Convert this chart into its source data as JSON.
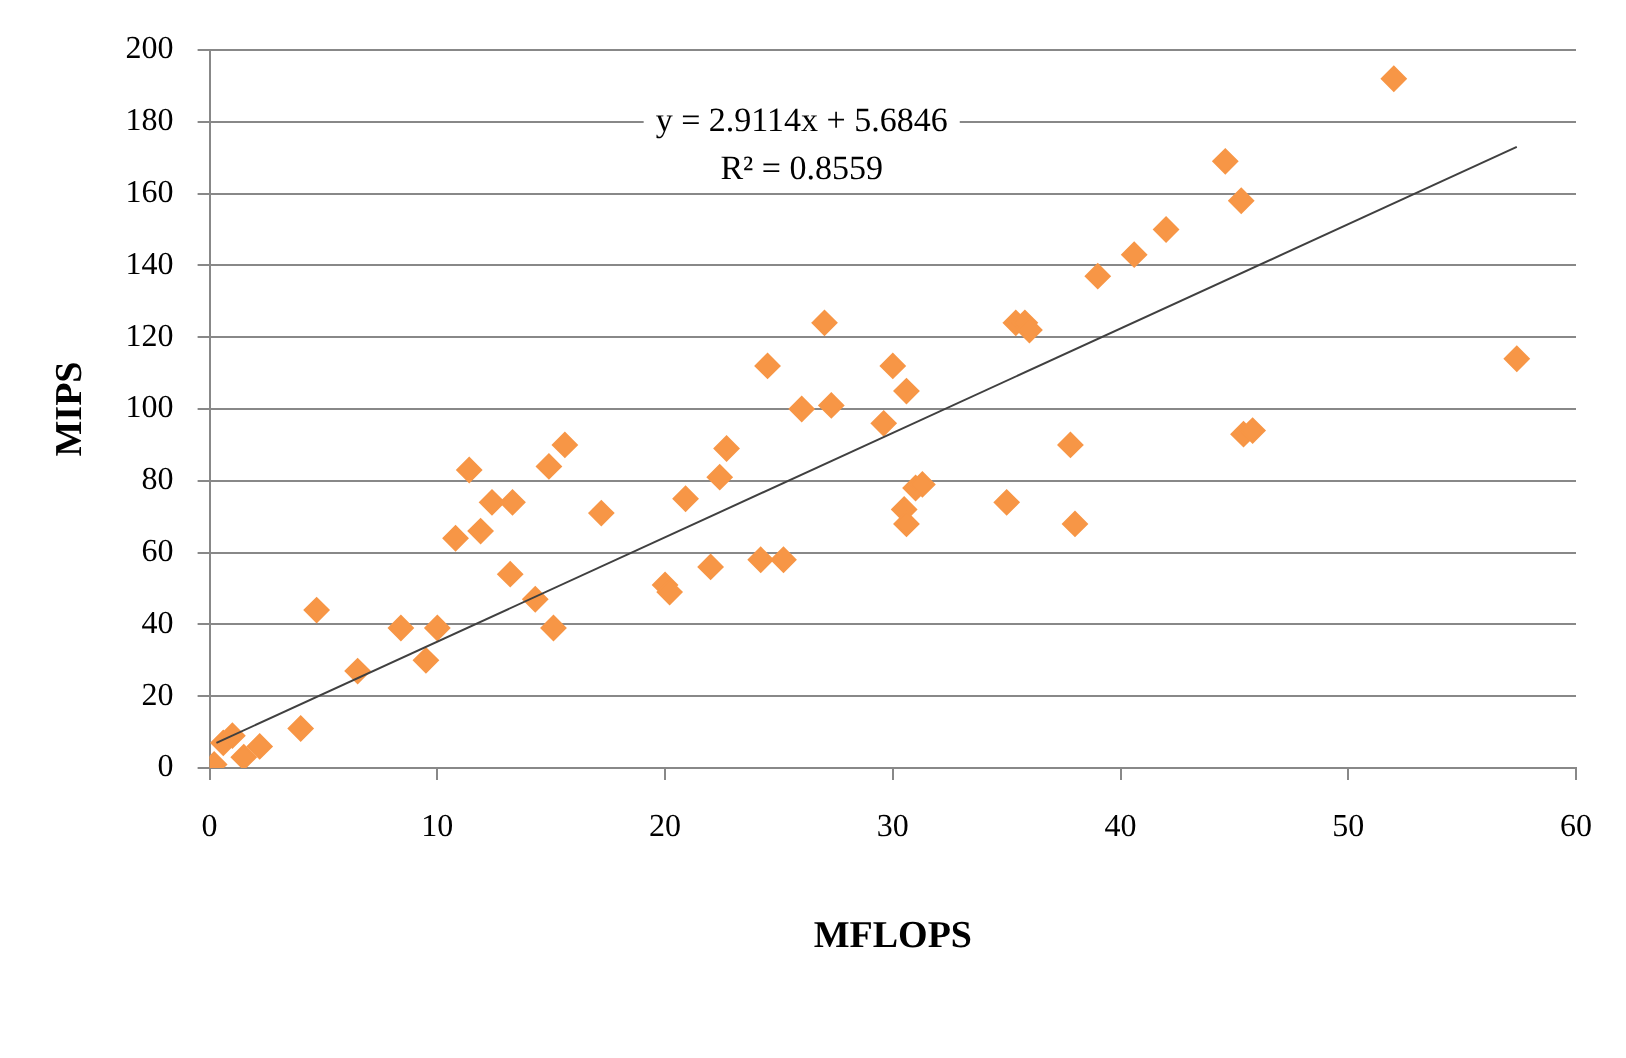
{
  "chart_data": {
    "type": "scatter",
    "xlabel": "MFLOPS",
    "ylabel": "MIPS",
    "xlim": [
      0,
      60
    ],
    "xticks": [
      0,
      10,
      20,
      30,
      40,
      50,
      60
    ],
    "ylim": [
      0,
      200
    ],
    "yticks": [
      0,
      20,
      40,
      60,
      80,
      100,
      120,
      140,
      160,
      180,
      200
    ],
    "grid": "y",
    "legend": false,
    "marker": "diamond",
    "annotations": [
      "y = 2.9114x + 5.6846",
      "R² = 0.8559"
    ],
    "series": [
      {
        "color": "#f79646",
        "x": [
          0.2,
          0.6,
          1,
          1.5,
          2.2,
          4,
          4.7,
          6.5,
          8.4,
          9.5,
          10,
          10.8,
          11.4,
          11.9,
          12.4,
          13.3,
          13.2,
          14.3,
          14.9,
          15.1,
          15.6,
          17.2,
          20,
          20.2,
          20.9,
          22,
          22.4,
          22.7,
          24.2,
          25.2,
          24.5,
          26,
          27,
          27.3,
          29.6,
          30,
          30.6,
          30.5,
          30.6,
          31,
          31.3,
          35,
          35.4,
          35.8,
          36,
          37.8,
          38,
          39,
          40.6,
          42,
          44.6,
          45.3,
          45.4,
          45.8,
          52,
          57.4
        ],
        "values": [
          1,
          7,
          9,
          3,
          6,
          11,
          44,
          27,
          39,
          30,
          39,
          64,
          83,
          66,
          74,
          74,
          54,
          47,
          84,
          39,
          90,
          71,
          51,
          49,
          75,
          56,
          81,
          89,
          58,
          58,
          112,
          100,
          124,
          101,
          96,
          112,
          105,
          72,
          68,
          78,
          79,
          74,
          124,
          124,
          122,
          90,
          68,
          137,
          143,
          150,
          169,
          158,
          93,
          94,
          192,
          114
        ]
      },
      {
        "type": "line",
        "color": "#404040",
        "x": [
          0.3,
          57.4
        ],
        "values": [
          7,
          173
        ],
        "marker": "none"
      }
    ]
  }
}
